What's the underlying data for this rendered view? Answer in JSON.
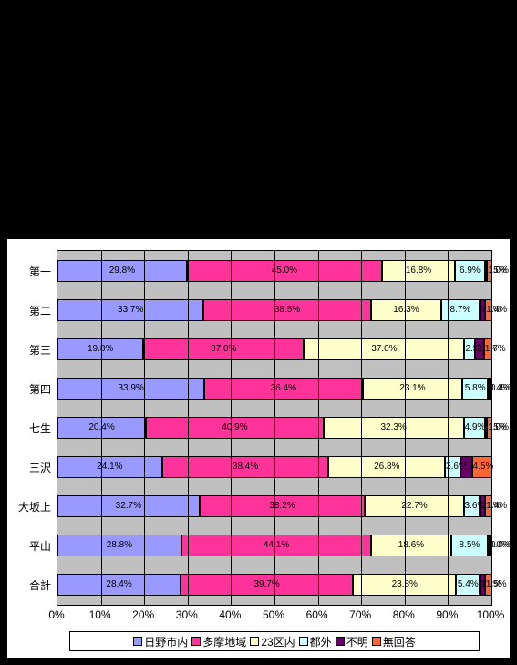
{
  "chart": {
    "type": "stacked-bar-horizontal",
    "background_color": "#000000",
    "chart_bg": "#ffffff",
    "plot_bg": "#c0c0c0",
    "grid_color": "#000000",
    "border_color": "#000000",
    "x_axis": {
      "min": 0,
      "max": 100,
      "tick_step": 10,
      "suffix": "%",
      "label_fontsize": 12
    },
    "y_label_fontsize": 12,
    "value_label_fontsize": 10,
    "legend_border_color": "#000000",
    "series": [
      {
        "name": "日野市内",
        "color": "#9999ff"
      },
      {
        "name": "多摩地域",
        "color": "#ff3399"
      },
      {
        "name": "23区内",
        "color": "#ffffcc"
      },
      {
        "name": "都外",
        "color": "#ccffff"
      },
      {
        "name": "不明",
        "color": "#660066"
      },
      {
        "name": "無回答",
        "color": "#ff6633"
      }
    ],
    "categories": [
      "第一",
      "第二",
      "第三",
      "第四",
      "七生",
      "三沢",
      "大坂上",
      "平山",
      "合計"
    ],
    "data": [
      [
        29.8,
        45.0,
        16.8,
        6.9,
        0.5,
        1.0
      ],
      [
        33.7,
        38.5,
        16.3,
        8.7,
        1.4,
        1.4
      ],
      [
        19.8,
        37.0,
        37.0,
        2.5,
        2.0,
        1.7
      ],
      [
        33.9,
        36.4,
        23.1,
        5.8,
        0.4,
        0.4
      ],
      [
        20.4,
        40.9,
        32.3,
        4.9,
        0.5,
        1.0
      ],
      [
        24.1,
        38.4,
        26.8,
        3.6,
        2.6,
        4.5
      ],
      [
        32.7,
        38.2,
        22.7,
        3.6,
        1.4,
        1.4
      ],
      [
        28.8,
        44.1,
        18.6,
        8.5,
        0.0,
        0.0
      ],
      [
        28.4,
        39.7,
        23.8,
        5.4,
        1.2,
        1.5
      ]
    ],
    "labels": [
      [
        "29.8%",
        "45.0%",
        "16.8%",
        "6.9%",
        "0.5%",
        "1.0%"
      ],
      [
        "33.7%",
        "38.5%",
        "16.3%",
        "8.7%",
        "1.4%",
        "1.4%"
      ],
      [
        "19.8%",
        "37.0%",
        "37.0%",
        "2.5%",
        "2.0%",
        "1.7%"
      ],
      [
        "33.9%",
        "36.4%",
        "23.1%",
        "5.8%",
        "0.4%",
        "0.4%"
      ],
      [
        "20.4%",
        "40.9%",
        "32.3%",
        "4.9%",
        "0.5%",
        "1.0%"
      ],
      [
        "24.1%",
        "38.4%",
        "26.8%",
        "3.6%",
        "2.6%",
        "4.5%"
      ],
      [
        "32.7%",
        "38.2%",
        "22.7%",
        "3.6%",
        "1.4%",
        "1.4%"
      ],
      [
        "28.8%",
        "44.1%",
        "18.6%",
        "8.5%",
        "0.0%",
        "0.0%"
      ],
      [
        "28.4%",
        "39.7%",
        "23.8%",
        "5.4%",
        "1.2%",
        "1.5%"
      ]
    ]
  }
}
